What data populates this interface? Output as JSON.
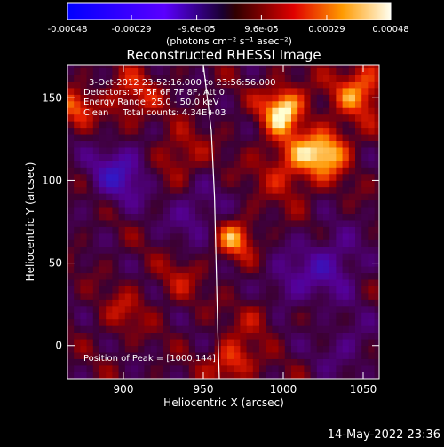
{
  "chart_data": {
    "type": "heatmap",
    "title": "Reconstructed RHESSI Image",
    "xlabel": "Heliocentric X (arcsec)",
    "ylabel": "Heliocentric Y (arcsec)",
    "xlim": [
      865,
      1060
    ],
    "ylim": [
      -20,
      170
    ],
    "x_ticks": [
      900,
      950,
      1000,
      1050
    ],
    "y_ticks": [
      0,
      50,
      100,
      150
    ],
    "colorbar": {
      "unit_label": "(photons cm⁻² s⁻¹ asec⁻²)",
      "vmin": -0.00048,
      "vmax": 0.00048,
      "ticks": [
        -0.00048,
        -0.00029,
        -9.6e-05,
        9.6e-05,
        0.00029,
        0.00048
      ],
      "tick_labels": [
        "-0.00048",
        "-0.00029",
        "-9.6e-05",
        "9.6e-05",
        "0.00029",
        "0.00048"
      ]
    },
    "annotations": [
      "3-Oct-2012 23:52:16.000 to 23:56:56.000",
      "Detectors: 3F 5F 6F 7F 8F, Att 0",
      "Energy Range: 25.0 - 50.0 keV",
      "Clean     Total counts: 4.34E+03"
    ],
    "peak_label": "Position of Peak = [1000,144]",
    "peak_position": [
      1000,
      144
    ],
    "hot_regions": [
      {
        "x": 1000,
        "y": 144,
        "intensity": 1.0,
        "sigma": 10
      },
      {
        "x": 1028,
        "y": 118,
        "intensity": 0.85,
        "sigma": 10
      },
      {
        "x": 1048,
        "y": 155,
        "intensity": 0.75,
        "sigma": 12
      },
      {
        "x": 1005,
        "y": 110,
        "intensity": 0.6,
        "sigma": 14
      },
      {
        "x": 970,
        "y": 65,
        "intensity": 0.7,
        "sigma": 9
      },
      {
        "x": 968,
        "y": -10,
        "intensity": 0.7,
        "sigma": 9
      },
      {
        "x": 985,
        "y": 20,
        "intensity": 0.4,
        "sigma": 10
      },
      {
        "x": 905,
        "y": 150,
        "intensity": 0.5,
        "sigma": 12
      },
      {
        "x": 935,
        "y": 115,
        "intensity": 0.45,
        "sigma": 11
      },
      {
        "x": 870,
        "y": 145,
        "intensity": 0.6,
        "sigma": 8
      },
      {
        "x": 900,
        "y": 20,
        "intensity": 0.35,
        "sigma": 10
      },
      {
        "x": 935,
        "y": 40,
        "intensity": 0.3,
        "sigma": 10
      }
    ],
    "cold_regions": [
      {
        "x": 898,
        "y": 105,
        "intensity": -0.7,
        "sigma": 13
      },
      {
        "x": 945,
        "y": 80,
        "intensity": -0.45,
        "sigma": 12
      },
      {
        "x": 1030,
        "y": 50,
        "intensity": -0.55,
        "sigma": 14
      },
      {
        "x": 1000,
        "y": 35,
        "intensity": -0.45,
        "sigma": 12
      },
      {
        "x": 1040,
        "y": 0,
        "intensity": -0.35,
        "sigma": 12
      }
    ],
    "limb_curve": [
      [
        950,
        170
      ],
      [
        955,
        130
      ],
      [
        957,
        90
      ],
      [
        958,
        50
      ],
      [
        959,
        10
      ],
      [
        960,
        -20
      ]
    ]
  },
  "footer": {
    "date_stamp": "14-May-2022 23:36"
  },
  "colors": {
    "background": "#000000",
    "text": "#ffffff",
    "limb": "#ffffff"
  }
}
